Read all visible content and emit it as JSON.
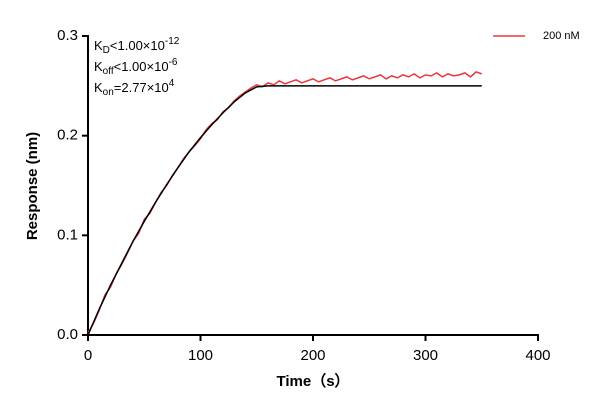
{
  "chart_data": {
    "type": "line",
    "xlabel": "Time（s）",
    "ylabel": "Response (nm)",
    "xlim": [
      0,
      400
    ],
    "xticks": [
      0,
      100,
      200,
      300,
      400
    ],
    "ylim": [
      0,
      0.3
    ],
    "yticks": [
      {
        "value": 0,
        "label": "0.0"
      },
      0.1,
      0.2,
      0.3
    ],
    "legend": "upper right",
    "annotations": [
      {
        "parts": [
          "K",
          "D",
          "<1.00×10",
          "-12"
        ]
      },
      {
        "parts": [
          "K",
          "off",
          "<1.00×10",
          "-6"
        ]
      },
      {
        "parts": [
          "K",
          "on",
          "=2.77×10",
          "4"
        ]
      }
    ],
    "series": [
      {
        "name": "200 nM",
        "color": "#e8383d",
        "x": [
          0,
          5,
          10,
          15,
          20,
          25,
          30,
          35,
          40,
          45,
          50,
          55,
          60,
          65,
          70,
          75,
          80,
          85,
          90,
          95,
          100,
          105,
          110,
          115,
          120,
          125,
          130,
          135,
          140,
          145,
          150,
          155,
          160,
          165,
          170,
          175,
          180,
          185,
          190,
          195,
          200,
          205,
          210,
          215,
          220,
          225,
          230,
          235,
          240,
          245,
          250,
          255,
          260,
          265,
          270,
          275,
          280,
          285,
          290,
          295,
          300,
          305,
          310,
          315,
          320,
          325,
          330,
          335,
          340,
          345,
          350
        ],
        "values": [
          0.002,
          0.012,
          0.025,
          0.04,
          0.048,
          0.061,
          0.071,
          0.082,
          0.094,
          0.102,
          0.116,
          0.122,
          0.133,
          0.143,
          0.15,
          0.16,
          0.168,
          0.177,
          0.184,
          0.19,
          0.197,
          0.206,
          0.212,
          0.216,
          0.224,
          0.228,
          0.235,
          0.24,
          0.244,
          0.248,
          0.251,
          0.249,
          0.253,
          0.251,
          0.255,
          0.252,
          0.254,
          0.256,
          0.253,
          0.255,
          0.257,
          0.254,
          0.256,
          0.258,
          0.255,
          0.257,
          0.259,
          0.256,
          0.258,
          0.26,
          0.257,
          0.259,
          0.261,
          0.257,
          0.26,
          0.258,
          0.261,
          0.259,
          0.262,
          0.258,
          0.261,
          0.26,
          0.263,
          0.259,
          0.262,
          0.26,
          0.261,
          0.263,
          0.259,
          0.264,
          0.262
        ]
      },
      {
        "color": "#000000",
        "x": [
          0,
          10,
          20,
          30,
          40,
          50,
          60,
          70,
          80,
          90,
          100,
          110,
          120,
          130,
          140,
          150,
          160,
          170,
          180,
          190,
          200,
          210,
          220,
          230,
          240,
          250,
          260,
          270,
          280,
          290,
          300,
          310,
          320,
          330,
          340,
          350
        ],
        "values": [
          0,
          0.026,
          0.05,
          0.072,
          0.094,
          0.114,
          0.133,
          0.151,
          0.168,
          0.184,
          0.198,
          0.211,
          0.223,
          0.234,
          0.243,
          0.249,
          0.25,
          0.25,
          0.25,
          0.25,
          0.25,
          0.25,
          0.25,
          0.25,
          0.25,
          0.25,
          0.25,
          0.25,
          0.25,
          0.25,
          0.25,
          0.25,
          0.25,
          0.25,
          0.25,
          0.25
        ]
      }
    ]
  }
}
